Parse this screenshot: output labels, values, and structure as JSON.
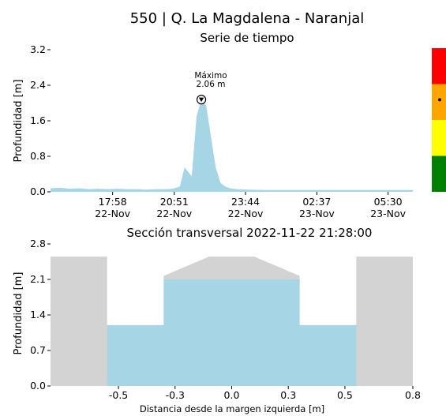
{
  "header": {
    "title": "550 | Q. La Magdalena - Naranjal"
  },
  "chart_data": [
    {
      "type": "area",
      "title": "Serie de tiempo",
      "ylabel": "Profundidad [m]",
      "xlabel": "",
      "ylim": [
        0,
        3.2
      ],
      "xlim": [
        0,
        75.67
      ],
      "yticks": [
        "0.0",
        "0.8",
        "1.6",
        "2.4",
        "3.2"
      ],
      "ytick_values": [
        0,
        0.8,
        1.6,
        2.4,
        3.2
      ],
      "xtick_values": [
        12.97,
        25.85,
        40.73,
        55.62,
        70.5
      ],
      "xticks": [
        {
          "time": "17:58",
          "date": "22-Nov"
        },
        {
          "time": "20:51",
          "date": "22-Nov"
        },
        {
          "time": "23:44",
          "date": "22-Nov"
        },
        {
          "time": "02:37",
          "date": "23-Nov"
        },
        {
          "time": "05:30",
          "date": "23-Nov"
        }
      ],
      "x": [
        0,
        2,
        4,
        6,
        8,
        10,
        12,
        14,
        16,
        18,
        20,
        22,
        24,
        25.5,
        27,
        28,
        29.5,
        30.5,
        31.5,
        32.5,
        33.5,
        34.5,
        35.5,
        36.5,
        37.5,
        39,
        41,
        45,
        50,
        55,
        60,
        65,
        70,
        75.67
      ],
      "values": [
        0.08,
        0.09,
        0.07,
        0.08,
        0.06,
        0.07,
        0.06,
        0.07,
        0.06,
        0.06,
        0.05,
        0.06,
        0.06,
        0.07,
        0.12,
        0.55,
        0.35,
        1.7,
        2.06,
        1.95,
        1.25,
        0.55,
        0.2,
        0.12,
        0.08,
        0.06,
        0.05,
        0.04,
        0.04,
        0.04,
        0.04,
        0.04,
        0.04,
        0.04
      ],
      "annotation": {
        "label": "Máximo",
        "value_label": "2.06 m",
        "x": 31.5,
        "y": 2.06
      },
      "color": "#a6d6e6",
      "alert_bar": {
        "levels": [
          {
            "name": "green",
            "color": "#008000",
            "from": 0,
            "to": 0.8
          },
          {
            "name": "yellow",
            "color": "#ffff00",
            "from": 0.8,
            "to": 1.6
          },
          {
            "name": "orange",
            "color": "#ffa500",
            "from": 1.6,
            "to": 2.4
          },
          {
            "name": "red",
            "color": "#ff0000",
            "from": 2.4,
            "to": 3.2
          }
        ],
        "marker_value": 2.06
      }
    },
    {
      "type": "area",
      "title": "Sección transversal 2022-11-22 21:28:00",
      "xlabel": "Distancia desde la margen izquierda [m]",
      "ylabel": "Profundidad [m]",
      "xlim": [
        -0.8,
        0.8
      ],
      "ylim": [
        0,
        2.8
      ],
      "xticks": [
        "-0.5",
        "-0.3",
        "0.0",
        "0.3",
        "0.5",
        "0.8"
      ],
      "xtick_values": [
        -0.5,
        -0.25,
        0.0,
        0.25,
        0.5,
        0.8
      ],
      "yticks": [
        "0.0",
        "0.7",
        "1.4",
        "2.1",
        "2.8"
      ],
      "ytick_values": [
        0,
        0.7,
        1.4,
        2.1,
        2.8
      ],
      "channel_profile": {
        "x": [
          -0.8,
          -0.8,
          -0.55,
          -0.55,
          -0.3,
          -0.3,
          -0.1,
          0.1,
          0.3,
          0.3,
          0.55,
          0.55,
          0.8,
          0.8
        ],
        "y": [
          0,
          2.55,
          2.55,
          0,
          0,
          2.55,
          2.55,
          2.55,
          2.55,
          0,
          0,
          2.55,
          2.55,
          0
        ]
      },
      "bed_profile": {
        "x": [
          -0.8,
          -0.8,
          -0.55,
          -0.55,
          -0.3,
          -0.3,
          -0.1,
          0.1,
          0.3,
          0.3,
          0.55,
          0.55,
          0.8,
          0.8
        ],
        "y": [
          0,
          2.55,
          2.55,
          1.2,
          1.2,
          2.17,
          2.55,
          2.55,
          2.17,
          1.2,
          1.2,
          2.55,
          2.55,
          0
        ]
      },
      "water_level": 2.1,
      "water_profile": {
        "x": [
          -0.55,
          -0.55,
          -0.3,
          -0.3,
          0.3,
          0.3,
          0.55,
          0.55
        ],
        "y": [
          0,
          1.2,
          1.2,
          2.1,
          2.1,
          1.2,
          1.2,
          0
        ]
      },
      "water_color": "#a6d6e6",
      "bank_color": "#d3d3d3"
    }
  ]
}
